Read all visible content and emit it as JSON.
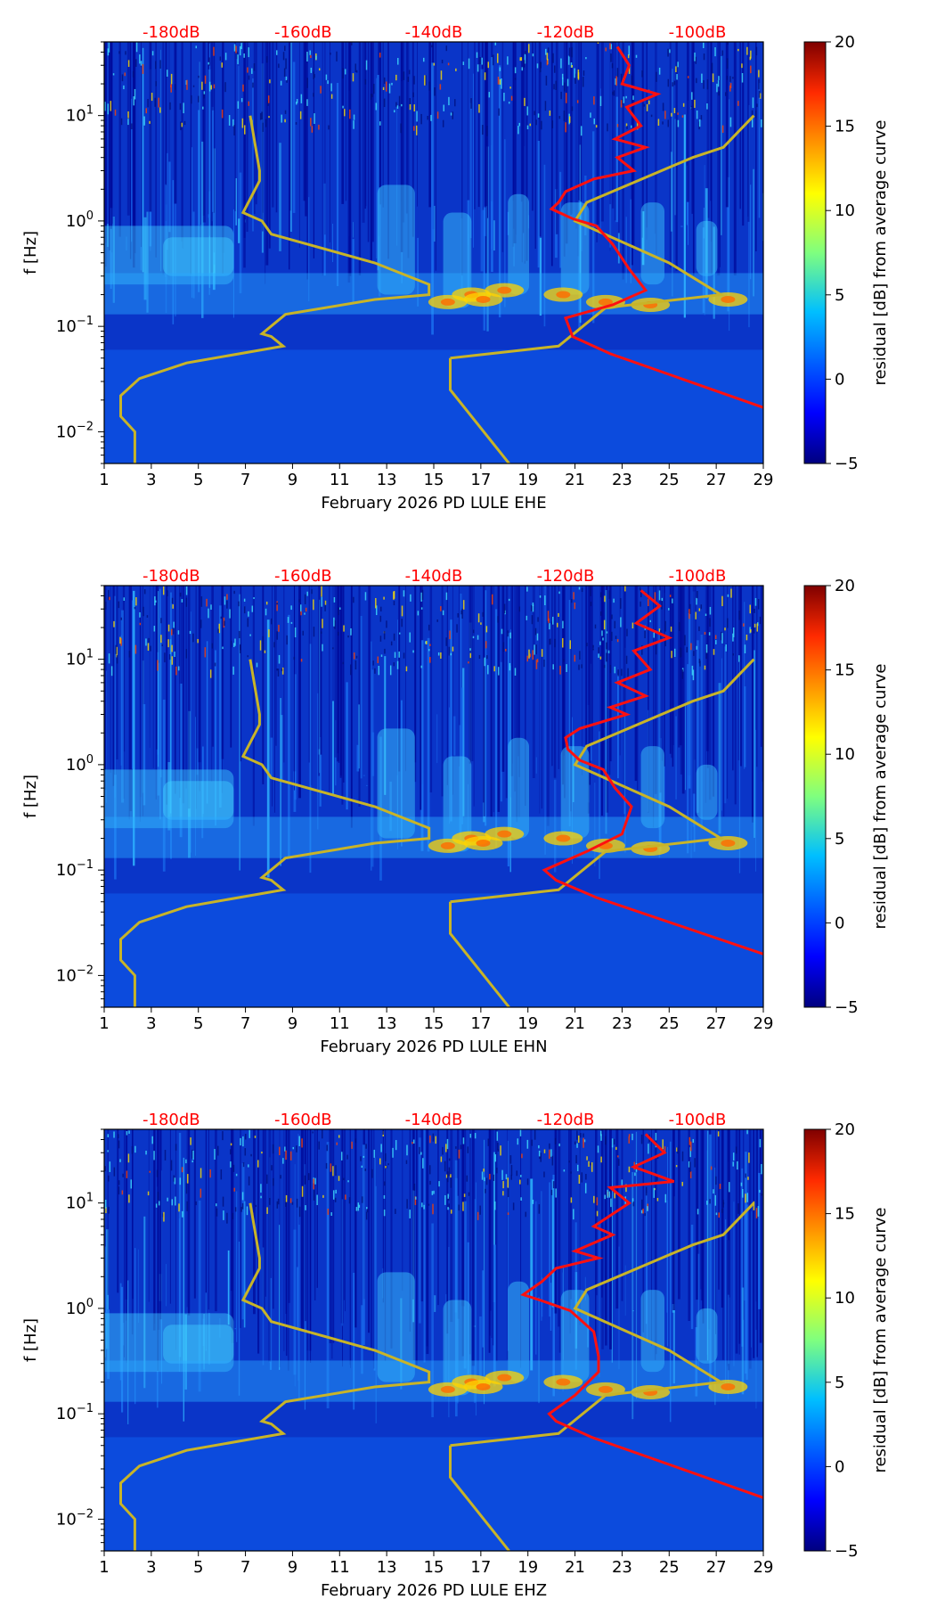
{
  "colors": {
    "red_curve": "#ff1010",
    "model_curve": "#c8b428",
    "db_label": "#ff0000",
    "bg_dark": "#00008b",
    "bg_mid": "#0a3cd8"
  },
  "chart_data": [
    {
      "type": "heatmap",
      "xlabel": "February 2026 PD LULE  EHE",
      "ylabel": "f [Hz]",
      "x_ticks": [
        "1",
        "3",
        "5",
        "7",
        "9",
        "11",
        "13",
        "15",
        "17",
        "19",
        "21",
        "23",
        "25",
        "27",
        "29"
      ],
      "xlim": [
        1,
        29
      ],
      "ylim": [
        0.005,
        50
      ],
      "yscale": "log",
      "y_ticks": [
        {
          "label_base": "10",
          "label_exp": "−2",
          "value": 0.01
        },
        {
          "label_base": "10",
          "label_exp": "−1",
          "value": 0.1
        },
        {
          "label_base": "10",
          "label_exp": "0",
          "value": 1
        },
        {
          "label_base": "10",
          "label_exp": "1",
          "value": 10
        }
      ],
      "top_ticks": [
        "-180dB",
        "-160dB",
        "-140dB",
        "-120dB",
        "-100dB"
      ],
      "top_tick_positions_days": [
        3.85,
        9.45,
        15.0,
        20.6,
        26.2
      ],
      "colorbar": {
        "label": "residual [dB] from average curve",
        "ticks": [
          "−5",
          "0",
          "5",
          "10",
          "15",
          "20"
        ],
        "min": -5,
        "max": 20
      },
      "model_curve": [
        [
          7.2,
          10
        ],
        [
          7.6,
          3
        ],
        [
          7.6,
          2.4
        ],
        [
          6.9,
          1.2
        ],
        [
          7.7,
          1
        ],
        [
          8.1,
          0.75
        ],
        [
          12.5,
          0.4
        ],
        [
          14.8,
          0.25
        ],
        [
          14.8,
          0.2
        ],
        [
          12.5,
          0.18
        ],
        [
          8.7,
          0.13
        ],
        [
          7.7,
          0.085
        ],
        [
          8.1,
          0.08
        ],
        [
          8.6,
          0.065
        ],
        [
          4.5,
          0.045
        ],
        [
          2.5,
          0.032
        ],
        [
          1.7,
          0.022
        ],
        [
          1.7,
          0.014
        ],
        [
          2.3,
          0.01
        ],
        [
          2.3,
          0.005
        ]
      ],
      "model_curve_right": [
        [
          15.7,
          0.05
        ],
        [
          15.7,
          0.025
        ],
        [
          18.2,
          0.005
        ]
      ],
      "model_curve_mid": [
        [
          15.7,
          0.05
        ],
        [
          20.3,
          0.065
        ],
        [
          22.3,
          0.15
        ],
        [
          27.2,
          0.2
        ],
        [
          25.0,
          0.4
        ],
        [
          21.0,
          1.0
        ],
        [
          21.5,
          1.5
        ],
        [
          26.0,
          4.0
        ],
        [
          27.3,
          5.0
        ],
        [
          28.6,
          10.0
        ]
      ],
      "red_curve": [
        [
          22.8,
          45
        ],
        [
          23.3,
          30
        ],
        [
          23.0,
          20
        ],
        [
          24.5,
          16
        ],
        [
          23.2,
          12
        ],
        [
          23.8,
          8
        ],
        [
          22.7,
          6
        ],
        [
          24.0,
          5
        ],
        [
          22.8,
          4
        ],
        [
          23.5,
          3
        ],
        [
          21.8,
          2.5
        ],
        [
          20.6,
          1.9
        ],
        [
          20.3,
          1.5
        ],
        [
          20.0,
          1.3
        ],
        [
          20.9,
          1.05
        ],
        [
          21.9,
          0.9
        ],
        [
          22.6,
          0.6
        ],
        [
          23.3,
          0.35
        ],
        [
          24.0,
          0.22
        ],
        [
          22.6,
          0.16
        ],
        [
          20.6,
          0.12
        ],
        [
          20.9,
          0.08
        ],
        [
          22.5,
          0.055
        ],
        [
          29.0,
          0.017
        ]
      ]
    },
    {
      "type": "heatmap",
      "xlabel": "February 2026 PD LULE  EHN",
      "ylabel": "f [Hz]",
      "x_ticks": [
        "1",
        "3",
        "5",
        "7",
        "9",
        "11",
        "13",
        "15",
        "17",
        "19",
        "21",
        "23",
        "25",
        "27",
        "29"
      ],
      "xlim": [
        1,
        29
      ],
      "ylim": [
        0.005,
        50
      ],
      "yscale": "log",
      "y_ticks": [
        {
          "label_base": "10",
          "label_exp": "−2",
          "value": 0.01
        },
        {
          "label_base": "10",
          "label_exp": "−1",
          "value": 0.1
        },
        {
          "label_base": "10",
          "label_exp": "0",
          "value": 1
        },
        {
          "label_base": "10",
          "label_exp": "1",
          "value": 10
        }
      ],
      "top_ticks": [
        "-180dB",
        "-160dB",
        "-140dB",
        "-120dB",
        "-100dB"
      ],
      "top_tick_positions_days": [
        3.85,
        9.45,
        15.0,
        20.6,
        26.2
      ],
      "colorbar": {
        "label": "residual [dB] from average curve",
        "ticks": [
          "−5",
          "0",
          "5",
          "10",
          "15",
          "20"
        ],
        "min": -5,
        "max": 20
      },
      "model_curve": [
        [
          7.2,
          10
        ],
        [
          7.6,
          3
        ],
        [
          7.6,
          2.4
        ],
        [
          6.9,
          1.2
        ],
        [
          7.7,
          1
        ],
        [
          8.1,
          0.75
        ],
        [
          12.5,
          0.4
        ],
        [
          14.8,
          0.25
        ],
        [
          14.8,
          0.2
        ],
        [
          12.5,
          0.18
        ],
        [
          8.7,
          0.13
        ],
        [
          7.7,
          0.085
        ],
        [
          8.1,
          0.08
        ],
        [
          8.6,
          0.065
        ],
        [
          4.5,
          0.045
        ],
        [
          2.5,
          0.032
        ],
        [
          1.7,
          0.022
        ],
        [
          1.7,
          0.014
        ],
        [
          2.3,
          0.01
        ],
        [
          2.3,
          0.005
        ]
      ],
      "model_curve_right": [
        [
          15.7,
          0.05
        ],
        [
          15.7,
          0.025
        ],
        [
          18.2,
          0.005
        ]
      ],
      "model_curve_mid": [
        [
          15.7,
          0.05
        ],
        [
          20.3,
          0.065
        ],
        [
          22.3,
          0.15
        ],
        [
          27.2,
          0.2
        ],
        [
          25.0,
          0.4
        ],
        [
          21.0,
          1.0
        ],
        [
          21.5,
          1.5
        ],
        [
          26.0,
          4.0
        ],
        [
          27.3,
          5.0
        ],
        [
          28.6,
          10.0
        ]
      ],
      "red_curve": [
        [
          23.8,
          45
        ],
        [
          24.6,
          32
        ],
        [
          23.6,
          22
        ],
        [
          25.0,
          16
        ],
        [
          23.5,
          12
        ],
        [
          24.2,
          8
        ],
        [
          22.8,
          6
        ],
        [
          24.0,
          4.5
        ],
        [
          22.5,
          3.5
        ],
        [
          23.2,
          3
        ],
        [
          21.2,
          2.2
        ],
        [
          20.6,
          1.8
        ],
        [
          20.7,
          1.4
        ],
        [
          21.2,
          1.1
        ],
        [
          22.2,
          0.9
        ],
        [
          22.7,
          0.6
        ],
        [
          23.4,
          0.4
        ],
        [
          23.0,
          0.22
        ],
        [
          21.5,
          0.15
        ],
        [
          19.7,
          0.1
        ],
        [
          20.2,
          0.08
        ],
        [
          21.9,
          0.055
        ],
        [
          29.0,
          0.016
        ]
      ]
    },
    {
      "type": "heatmap",
      "xlabel": "February 2026 PD LULE  EHZ",
      "ylabel": "f [Hz]",
      "x_ticks": [
        "1",
        "3",
        "5",
        "7",
        "9",
        "11",
        "13",
        "15",
        "17",
        "19",
        "21",
        "23",
        "25",
        "27",
        "29"
      ],
      "xlim": [
        1,
        29
      ],
      "ylim": [
        0.005,
        50
      ],
      "yscale": "log",
      "y_ticks": [
        {
          "label_base": "10",
          "label_exp": "−2",
          "value": 0.01
        },
        {
          "label_base": "10",
          "label_exp": "−1",
          "value": 0.1
        },
        {
          "label_base": "10",
          "label_exp": "0",
          "value": 1
        },
        {
          "label_base": "10",
          "label_exp": "1",
          "value": 10
        }
      ],
      "top_ticks": [
        "-180dB",
        "-160dB",
        "-140dB",
        "-120dB",
        "-100dB"
      ],
      "top_tick_positions_days": [
        3.85,
        9.45,
        15.0,
        20.6,
        26.2
      ],
      "colorbar": {
        "label": "residual [dB] from average curve",
        "ticks": [
          "−5",
          "0",
          "5",
          "10",
          "15",
          "20"
        ],
        "min": -5,
        "max": 20
      },
      "model_curve": [
        [
          7.2,
          10
        ],
        [
          7.6,
          3
        ],
        [
          7.6,
          2.4
        ],
        [
          6.9,
          1.2
        ],
        [
          7.7,
          1
        ],
        [
          8.1,
          0.75
        ],
        [
          12.5,
          0.4
        ],
        [
          14.8,
          0.25
        ],
        [
          14.8,
          0.2
        ],
        [
          12.5,
          0.18
        ],
        [
          8.7,
          0.13
        ],
        [
          7.7,
          0.085
        ],
        [
          8.1,
          0.08
        ],
        [
          8.6,
          0.065
        ],
        [
          4.5,
          0.045
        ],
        [
          2.5,
          0.032
        ],
        [
          1.7,
          0.022
        ],
        [
          1.7,
          0.014
        ],
        [
          2.3,
          0.01
        ],
        [
          2.3,
          0.005
        ]
      ],
      "model_curve_right": [
        [
          15.7,
          0.05
        ],
        [
          15.7,
          0.025
        ],
        [
          18.2,
          0.005
        ]
      ],
      "model_curve_mid": [
        [
          15.7,
          0.05
        ],
        [
          20.3,
          0.065
        ],
        [
          22.3,
          0.15
        ],
        [
          27.2,
          0.2
        ],
        [
          25.0,
          0.4
        ],
        [
          21.0,
          1.0
        ],
        [
          21.5,
          1.5
        ],
        [
          26.0,
          4.0
        ],
        [
          27.3,
          5.0
        ],
        [
          28.6,
          10.0
        ]
      ],
      "red_curve": [
        [
          24.0,
          45
        ],
        [
          24.8,
          30
        ],
        [
          23.5,
          22
        ],
        [
          25.2,
          16
        ],
        [
          22.5,
          14
        ],
        [
          23.3,
          10
        ],
        [
          21.8,
          6
        ],
        [
          22.6,
          5
        ],
        [
          21.0,
          3.5
        ],
        [
          22.0,
          3
        ],
        [
          20.2,
          2.4
        ],
        [
          19.6,
          1.8
        ],
        [
          18.8,
          1.35
        ],
        [
          19.5,
          1.2
        ],
        [
          20.8,
          0.95
        ],
        [
          21.8,
          0.6
        ],
        [
          22.0,
          0.35
        ],
        [
          22.0,
          0.25
        ],
        [
          21.0,
          0.15
        ],
        [
          19.9,
          0.1
        ],
        [
          20.2,
          0.085
        ],
        [
          21.7,
          0.06
        ],
        [
          29.0,
          0.016
        ]
      ]
    }
  ]
}
